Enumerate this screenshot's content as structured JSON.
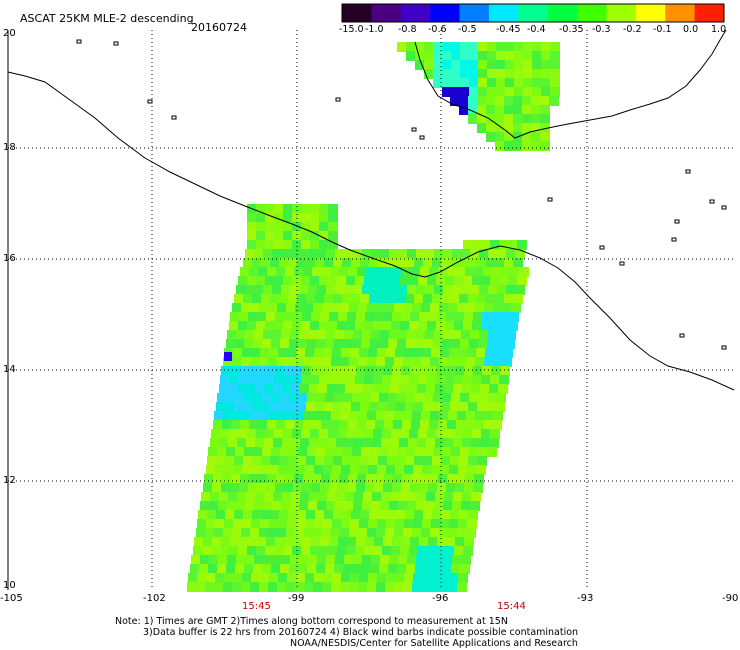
{
  "header": {
    "title": "ASCAT 25KM MLE-2 descending",
    "date": "20160724"
  },
  "colorbar": {
    "labels": [
      "-15.0",
      "-1.0",
      "-0.8",
      "-0.6",
      "-0.5",
      "-0.45",
      "-0.4",
      "-0.35",
      "-0.3",
      "-0.2",
      "-0.1",
      "0.0",
      "1.0"
    ],
    "colors": [
      "#240024",
      "#4a0080",
      "#4000c8",
      "#0000ff",
      "#0080ff",
      "#00e8ff",
      "#00ff90",
      "#00ff40",
      "#40ff00",
      "#a0ff00",
      "#ffff00",
      "#ff9000",
      "#ff2000"
    ]
  },
  "map": {
    "lon_labels": [
      "-105",
      "-102",
      "-99",
      "-96",
      "-93",
      "-90"
    ],
    "lat_labels": [
      "20",
      "18",
      "16",
      "14",
      "12",
      "10"
    ],
    "time_labels": [
      "15:45",
      "15:44"
    ]
  },
  "notes": {
    "line1": "Note: 1) Times are GMT 2)Times along bottom correspond to measurement at 15N",
    "line2": "3)Data buffer is 22 hrs from 20160724 4) Black wind barbs indicate possible contamination",
    "line3": "NOAA/NESDIS/Center for Satellite Applications and Research"
  }
}
